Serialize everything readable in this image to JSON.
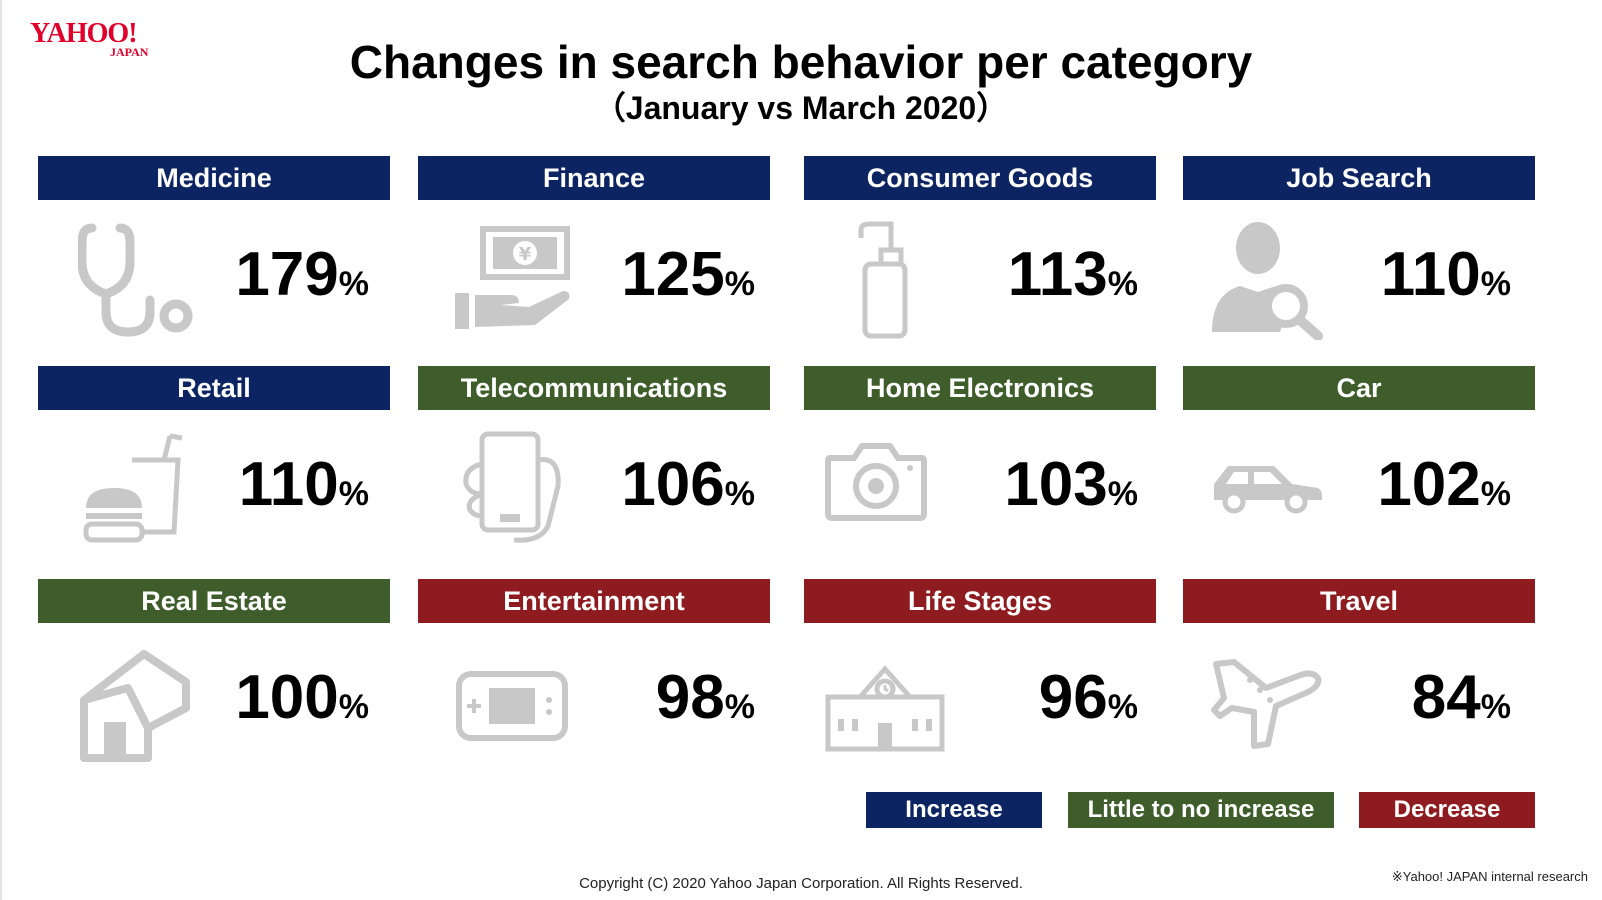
{
  "header": {
    "logo_text": "YAHOO!",
    "logo_sub": "JAPAN",
    "title": "Changes in search behavior per category",
    "subtitle": "（January vs March 2020）"
  },
  "colors": {
    "increase": "#0c2461",
    "little": "#3e5d2a",
    "decrease": "#8e1b1f",
    "icon": "#c8c8c8"
  },
  "chart_data": {
    "type": "table",
    "categories": [
      {
        "label": "Medicine",
        "value": 179,
        "unit": "%",
        "group": "increase",
        "icon": "stethoscope-icon"
      },
      {
        "label": "Finance",
        "value": 125,
        "unit": "%",
        "group": "increase",
        "icon": "money-hand-icon"
      },
      {
        "label": "Consumer Goods",
        "value": 113,
        "unit": "%",
        "group": "increase",
        "icon": "pump-bottle-icon"
      },
      {
        "label": "Job Search",
        "value": 110,
        "unit": "%",
        "group": "increase",
        "icon": "person-search-icon"
      },
      {
        "label": "Retail",
        "value": 110,
        "unit": "%",
        "group": "increase",
        "icon": "fast-food-icon"
      },
      {
        "label": "Telecommunications",
        "value": 106,
        "unit": "%",
        "group": "little",
        "icon": "smartphone-icon"
      },
      {
        "label": "Home Electronics",
        "value": 103,
        "unit": "%",
        "group": "little",
        "icon": "camera-icon"
      },
      {
        "label": "Car",
        "value": 102,
        "unit": "%",
        "group": "little",
        "icon": "car-icon"
      },
      {
        "label": "Real Estate",
        "value": 100,
        "unit": "%",
        "group": "little",
        "icon": "house-icon"
      },
      {
        "label": "Entertainment",
        "value": 98,
        "unit": "%",
        "group": "decrease",
        "icon": "game-console-icon"
      },
      {
        "label": "Life Stages",
        "value": 96,
        "unit": "%",
        "group": "decrease",
        "icon": "school-icon"
      },
      {
        "label": "Travel",
        "value": 84,
        "unit": "%",
        "group": "decrease",
        "icon": "airplane-icon"
      }
    ]
  },
  "legend": [
    {
      "label": "Increase",
      "group": "increase"
    },
    {
      "label": "Little to no increase",
      "group": "little"
    },
    {
      "label": "Decrease",
      "group": "decrease"
    }
  ],
  "footer": {
    "copyright": "Copyright (C) 2020 Yahoo Japan Corporation. All Rights Reserved.",
    "note": "※Yahoo! JAPAN internal research"
  }
}
